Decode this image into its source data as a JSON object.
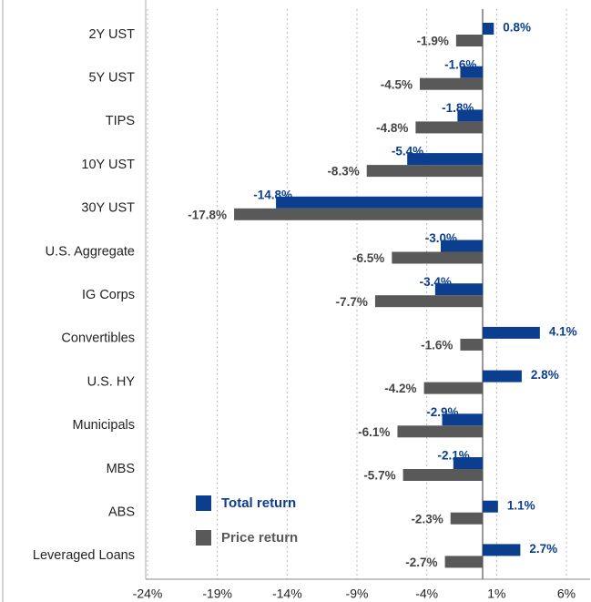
{
  "chart_data": {
    "type": "hbar",
    "categories": [
      "2Y UST",
      "5Y UST",
      "TIPS",
      "10Y UST",
      "30Y UST",
      "U.S. Aggregate",
      "IG Corps",
      "Convertibles",
      "U.S. HY",
      "Municipals",
      "MBS",
      "ABS",
      "Leveraged Loans"
    ],
    "series": [
      {
        "name": "Total return",
        "color": "#0b3e8f",
        "values": [
          0.8,
          -1.6,
          -1.8,
          -5.4,
          -14.8,
          -3.0,
          -3.4,
          4.1,
          2.8,
          -2.9,
          -2.1,
          1.1,
          2.7
        ],
        "value_labels": [
          "0.8%",
          "-1.6%",
          "-1.8%",
          "-5.4%",
          "-14.8%",
          "-3.0%",
          "-3.4%",
          "4.1%",
          "2.8%",
          "-2.9%",
          "-2.1%",
          "1.1%",
          "2.7%"
        ]
      },
      {
        "name": "Price return",
        "color": "#595959",
        "values": [
          -1.9,
          -4.5,
          -4.8,
          -8.3,
          -17.8,
          -6.5,
          -7.7,
          -1.6,
          -4.2,
          -6.1,
          -5.7,
          -2.3,
          -2.7
        ],
        "value_labels": [
          "-1.9%",
          "-4.5%",
          "-4.8%",
          "-8.3%",
          "-17.8%",
          "-6.5%",
          "-7.7%",
          "-1.6%",
          "-4.2%",
          "-6.1%",
          "-5.7%",
          "-2.3%",
          "-2.7%"
        ]
      }
    ],
    "xlim": [
      -24,
      7.7
    ],
    "xticks": [
      {
        "value": -24,
        "label": "-24%"
      },
      {
        "value": -19,
        "label": "-19%"
      },
      {
        "value": -14,
        "label": "-14%"
      },
      {
        "value": -9,
        "label": "-9%"
      },
      {
        "value": -4,
        "label": "-4%"
      },
      {
        "value": 1,
        "label": "1%"
      },
      {
        "value": 6,
        "label": "6%"
      }
    ],
    "grid": true
  }
}
